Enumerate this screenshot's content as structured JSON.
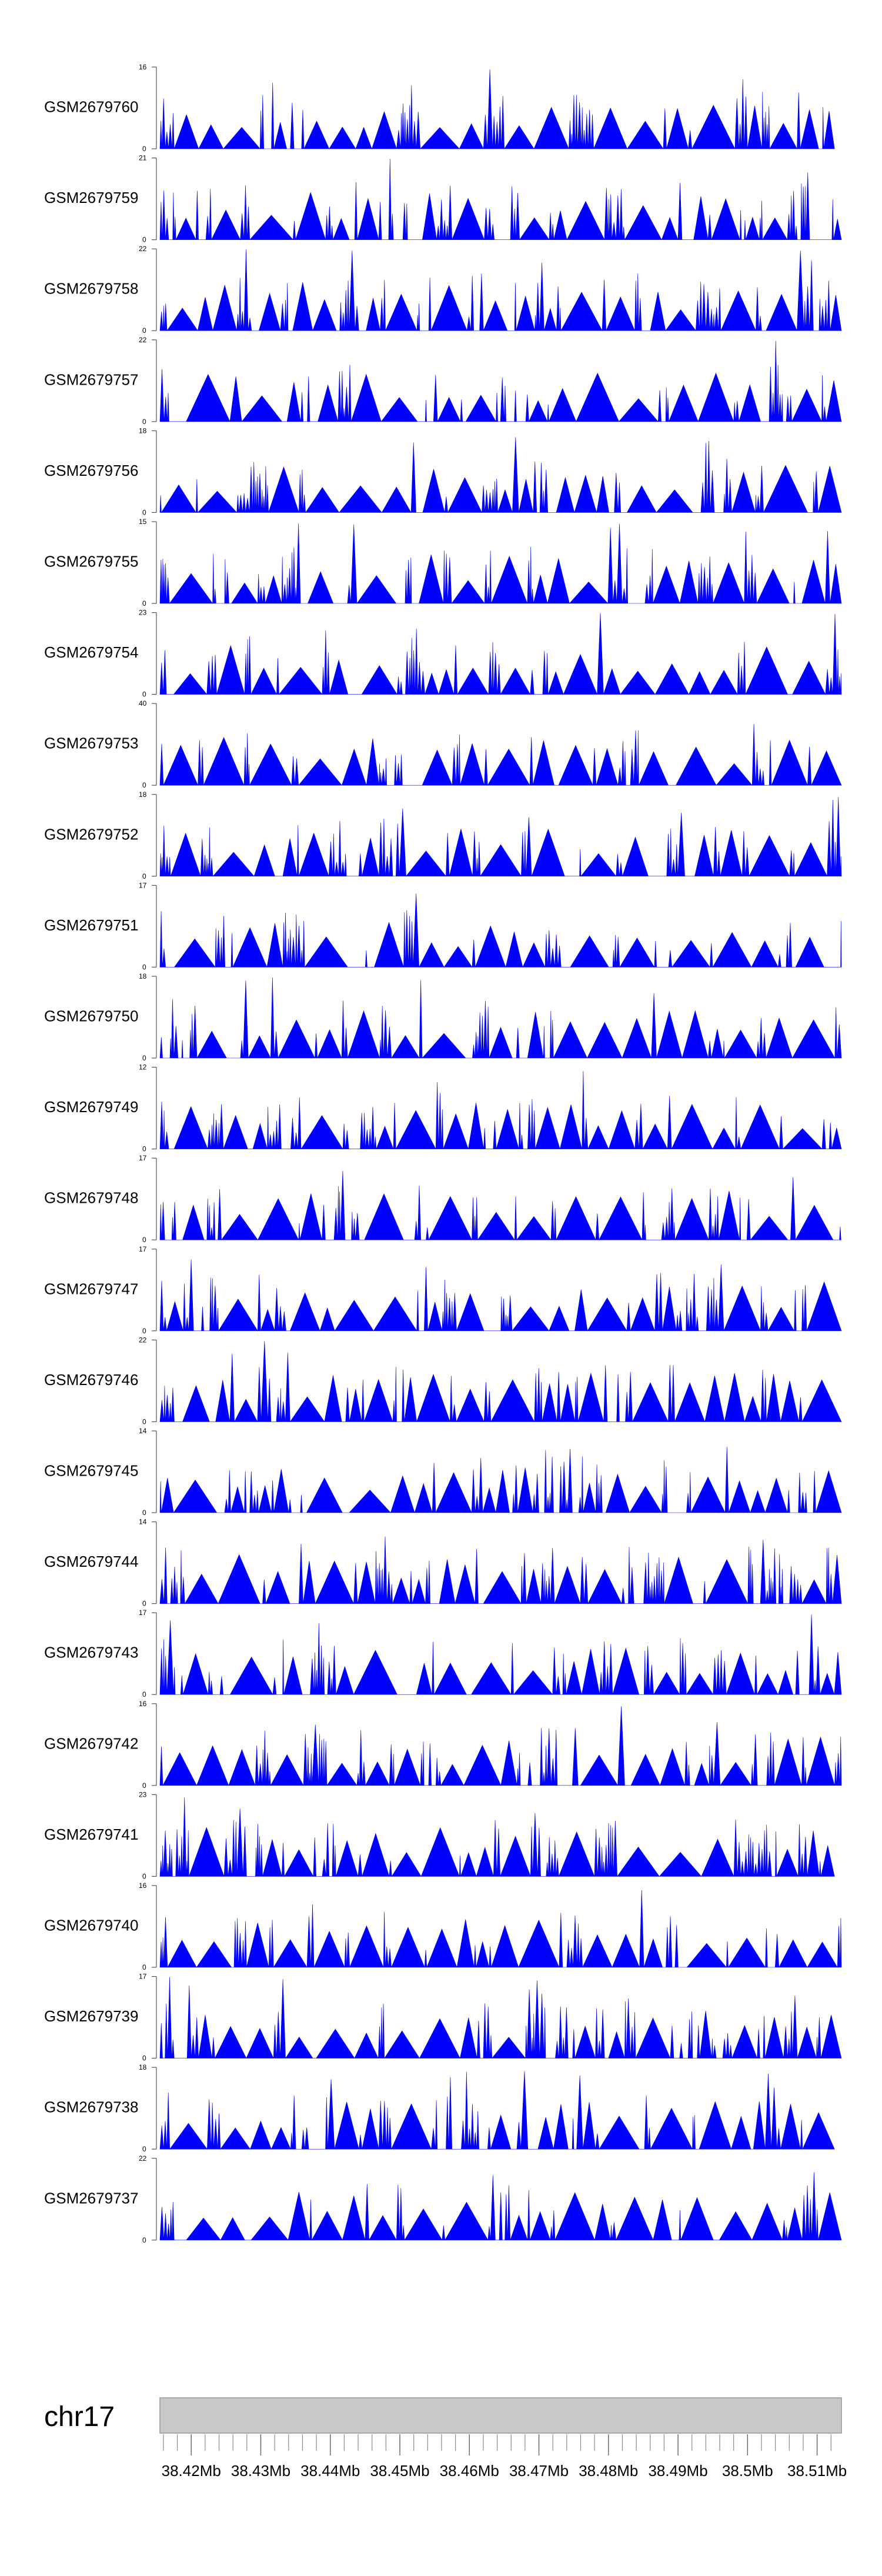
{
  "chart_data": {
    "type": "area",
    "title": "",
    "chromosome": "chr17",
    "x_range_mb": [
      38.4155,
      38.5135
    ],
    "x_ticks": [
      "38.42Mb",
      "38.43Mb",
      "38.44Mb",
      "38.45Mb",
      "38.46Mb",
      "38.47Mb",
      "38.48Mb",
      "38.49Mb",
      "38.5Mb",
      "38.51Mb"
    ],
    "x_tick_values_mb": [
      38.42,
      38.43,
      38.44,
      38.45,
      38.46,
      38.47,
      38.48,
      38.49,
      38.5,
      38.51
    ],
    "colors": {
      "fill": "#0000ff",
      "axis": "#555555",
      "ideogram": "#c8c8c8",
      "ideogram_stroke": "#999999"
    },
    "tracks": [
      {
        "name": "GSM2679760",
        "ymax": 16,
        "ymin_label": "0",
        "ymax_label": "16",
        "data_end_mb": 38.5125,
        "seed": 11
      },
      {
        "name": "GSM2679759",
        "ymax": 21,
        "ymin_label": "0",
        "ymax_label": "21",
        "data_end_mb": 38.5135,
        "seed": 23
      },
      {
        "name": "GSM2679758",
        "ymax": 22,
        "ymin_label": "0",
        "ymax_label": "22",
        "data_end_mb": 38.5135,
        "seed": 37
      },
      {
        "name": "GSM2679757",
        "ymax": 22,
        "ymin_label": "0",
        "ymax_label": "22",
        "data_end_mb": 38.5135,
        "seed": 41
      },
      {
        "name": "GSM2679756",
        "ymax": 18,
        "ymin_label": "0",
        "ymax_label": "18",
        "data_end_mb": 38.5135,
        "seed": 53
      },
      {
        "name": "GSM2679755",
        "ymax": 15,
        "ymin_label": "0",
        "ymax_label": "15",
        "data_end_mb": 38.5135,
        "seed": 67
      },
      {
        "name": "GSM2679754",
        "ymax": 23,
        "ymin_label": "0",
        "ymax_label": "23",
        "data_end_mb": 38.5135,
        "seed": 71
      },
      {
        "name": "GSM2679753",
        "ymax": 40,
        "ymin_label": "0",
        "ymax_label": "40",
        "data_end_mb": 38.5135,
        "seed": 83
      },
      {
        "name": "GSM2679752",
        "ymax": 18,
        "ymin_label": "0",
        "ymax_label": "18",
        "data_end_mb": 38.5135,
        "seed": 97
      },
      {
        "name": "GSM2679751",
        "ymax": 17,
        "ymin_label": "0",
        "ymax_label": "17",
        "data_end_mb": 38.5135,
        "seed": 101
      },
      {
        "name": "GSM2679750",
        "ymax": 18,
        "ymin_label": "0",
        "ymax_label": "18",
        "data_end_mb": 38.5135,
        "seed": 113
      },
      {
        "name": "GSM2679749",
        "ymax": 12,
        "ymin_label": "0",
        "ymax_label": "12",
        "data_end_mb": 38.5135,
        "seed": 127
      },
      {
        "name": "GSM2679748",
        "ymax": 17,
        "ymin_label": "0",
        "ymax_label": "17",
        "data_end_mb": 38.5135,
        "seed": 131
      },
      {
        "name": "GSM2679747",
        "ymax": 17,
        "ymin_label": "0",
        "ymax_label": "17",
        "data_end_mb": 38.5135,
        "seed": 149
      },
      {
        "name": "GSM2679746",
        "ymax": 22,
        "ymin_label": "0",
        "ymax_label": "22",
        "data_end_mb": 38.5135,
        "seed": 151
      },
      {
        "name": "GSM2679745",
        "ymax": 14,
        "ymin_label": "0",
        "ymax_label": "14",
        "data_end_mb": 38.5135,
        "seed": 163
      },
      {
        "name": "GSM2679744",
        "ymax": 14,
        "ymin_label": "0",
        "ymax_label": "14",
        "data_end_mb": 38.5135,
        "seed": 173
      },
      {
        "name": "GSM2679743",
        "ymax": 17,
        "ymin_label": "0",
        "ymax_label": "17",
        "data_end_mb": 38.5135,
        "seed": 181
      },
      {
        "name": "GSM2679742",
        "ymax": 16,
        "ymin_label": "0",
        "ymax_label": "16",
        "data_end_mb": 38.5135,
        "seed": 191
      },
      {
        "name": "GSM2679741",
        "ymax": 23,
        "ymin_label": "0",
        "ymax_label": "23",
        "data_end_mb": 38.5125,
        "seed": 199
      },
      {
        "name": "GSM2679740",
        "ymax": 16,
        "ymin_label": "0",
        "ymax_label": "16",
        "data_end_mb": 38.5135,
        "seed": 211
      },
      {
        "name": "GSM2679739",
        "ymax": 17,
        "ymin_label": "0",
        "ymax_label": "17",
        "data_end_mb": 38.5135,
        "seed": 223
      },
      {
        "name": "GSM2679738",
        "ymax": 18,
        "ymin_label": "0",
        "ymax_label": "18",
        "data_end_mb": 38.5125,
        "seed": 227
      },
      {
        "name": "GSM2679737",
        "ymax": 22,
        "ymin_label": "0",
        "ymax_label": "22",
        "data_end_mb": 38.5135,
        "seed": 239
      }
    ]
  }
}
